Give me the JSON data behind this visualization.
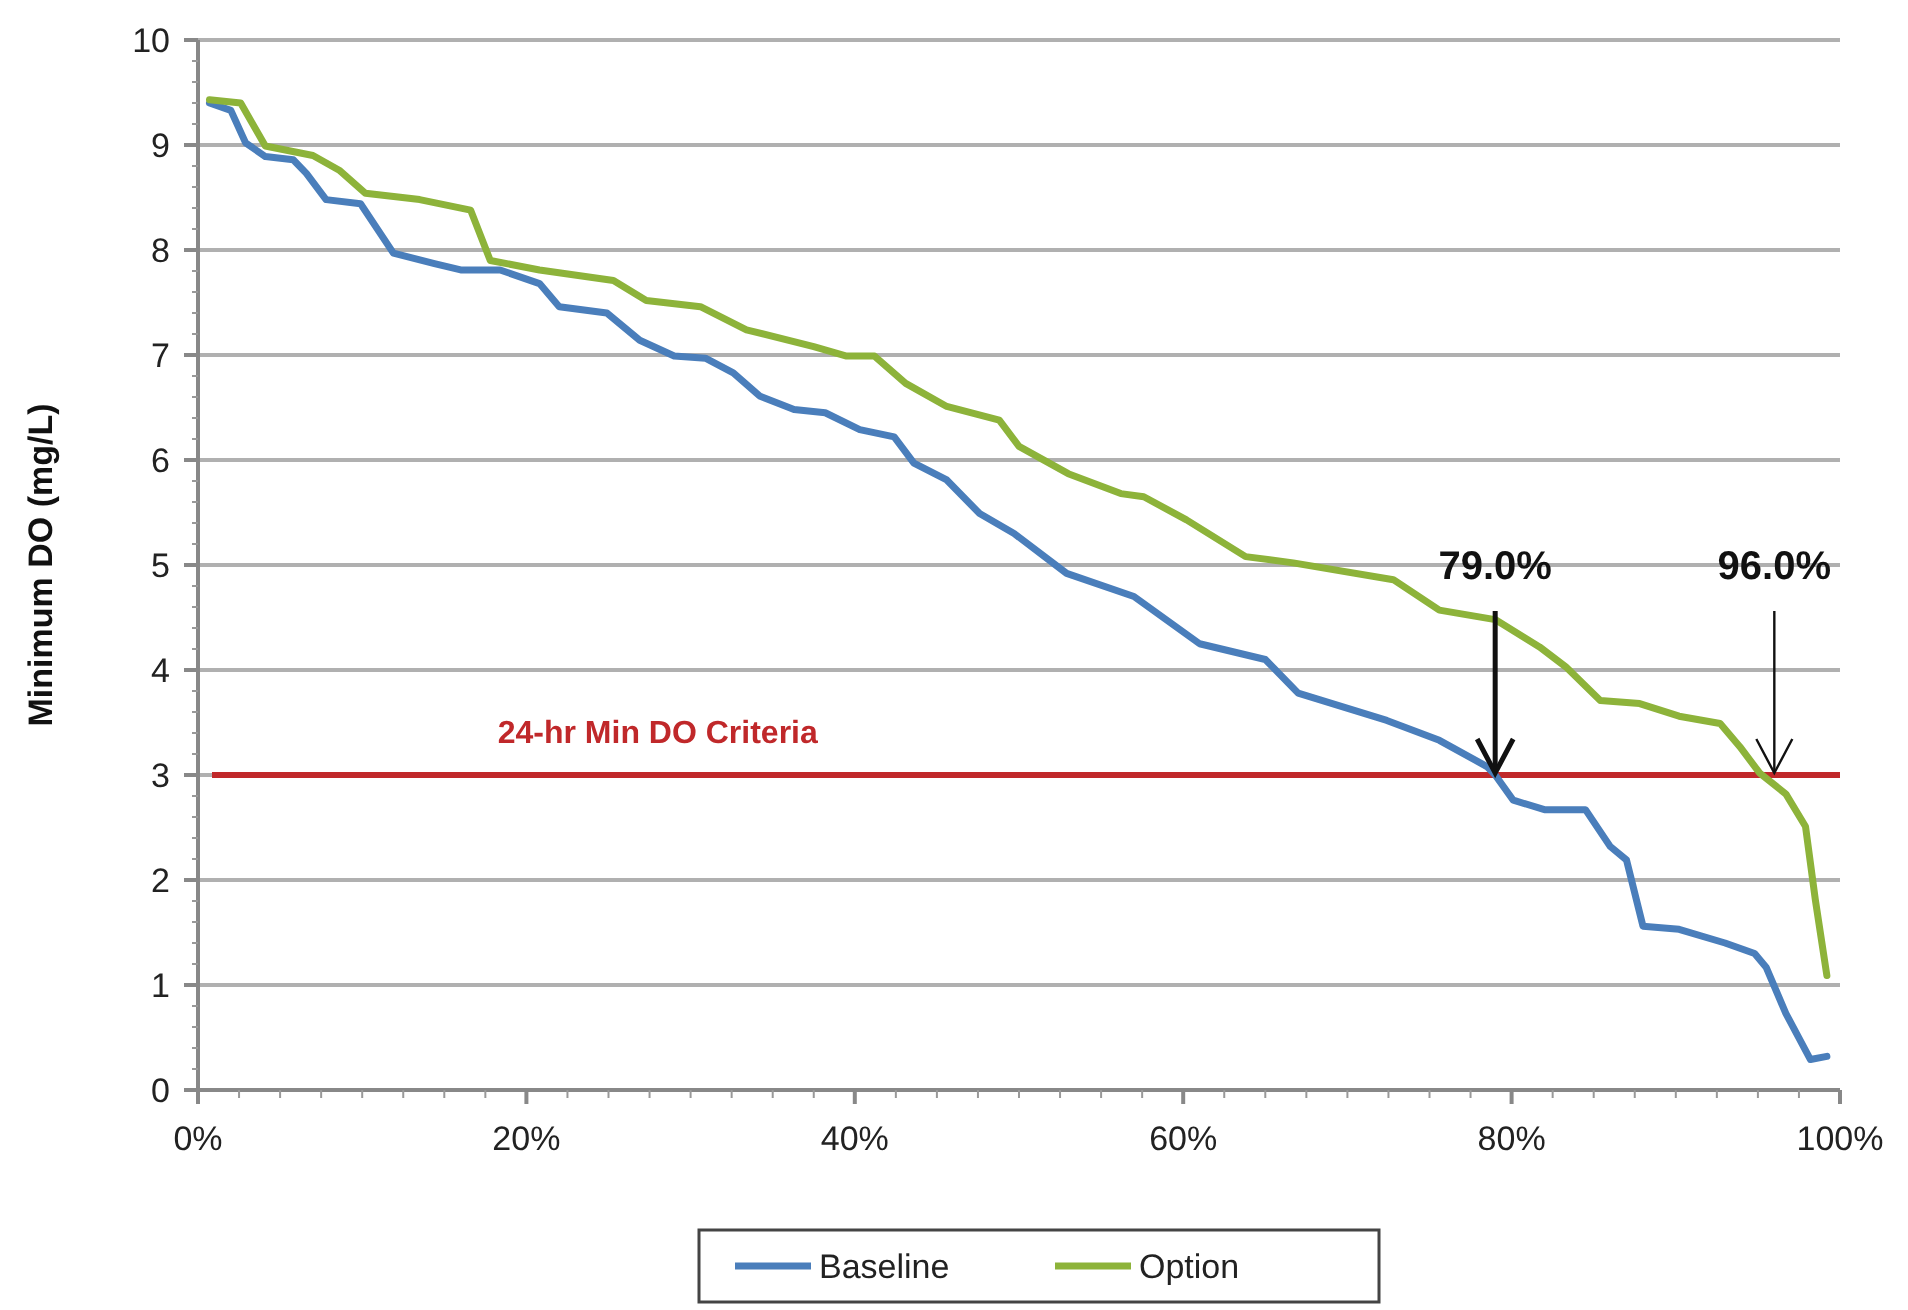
{
  "chart_data": {
    "type": "line",
    "ylabel": "Minimum DO (mg/L)",
    "xlim": [
      0,
      100
    ],
    "ylim": [
      0,
      10
    ],
    "xticks": [
      {
        "value": 0,
        "label": "0%"
      },
      {
        "value": 20,
        "label": "20%"
      },
      {
        "value": 40,
        "label": "40%"
      },
      {
        "value": 60,
        "label": "60%"
      },
      {
        "value": 80,
        "label": "80%"
      },
      {
        "value": 100,
        "label": "100%"
      }
    ],
    "yticks": [
      0,
      1,
      2,
      3,
      4,
      5,
      6,
      7,
      8,
      9,
      10
    ],
    "grid": "y",
    "legend": "bottom",
    "marker": "none",
    "line_style": "solid",
    "ref_lines": [
      {
        "axis": "y",
        "value": 3,
        "label": "24-hr Min DO Criteria",
        "color": "#c0282a"
      }
    ],
    "annotations": [
      {
        "text": "79.0%",
        "x": 79,
        "y": 3
      },
      {
        "text": "96.0%",
        "x": 96,
        "y": 3
      }
    ],
    "series": [
      {
        "name": "Baseline",
        "color": "#4a7ebb",
        "x": [
          0.7,
          2,
          2.9,
          4.1,
          5.8,
          6.6,
          7.8,
          9.9,
          11.9,
          14.4,
          16,
          18.4,
          20.8,
          22,
          24.9,
          26.9,
          29,
          30.9,
          32.6,
          34.2,
          36.3,
          38.2,
          40.3,
          42.4,
          43.6,
          45.6,
          47.6,
          49.7,
          52.9,
          57,
          61,
          65,
          67,
          72.4,
          75.6,
          78.5,
          79,
          80.1,
          82,
          84.5,
          86,
          87,
          88,
          90.2,
          93,
          94.8,
          95.5,
          96.7,
          98.2,
          99.2
        ],
        "values": [
          9.4,
          9.33,
          9.02,
          8.89,
          8.86,
          8.73,
          8.48,
          8.44,
          7.97,
          7.87,
          7.81,
          7.81,
          7.68,
          7.46,
          7.4,
          7.14,
          6.99,
          6.97,
          6.83,
          6.61,
          6.48,
          6.45,
          6.29,
          6.22,
          5.97,
          5.81,
          5.49,
          5.3,
          4.92,
          4.7,
          4.25,
          4.1,
          3.78,
          3.52,
          3.33,
          3.08,
          3.0,
          2.76,
          2.67,
          2.67,
          2.32,
          2.19,
          1.56,
          1.53,
          1.4,
          1.3,
          1.17,
          0.73,
          0.29,
          0.32
        ]
      },
      {
        "name": "Option",
        "color": "#8db33a",
        "x": [
          0.7,
          2.6,
          4.1,
          7,
          8.6,
          10.2,
          13.5,
          16.6,
          17.8,
          20.8,
          25.3,
          27.3,
          30.6,
          33.4,
          37.5,
          39.5,
          41.2,
          43.1,
          45.6,
          48.8,
          50,
          53,
          56.2,
          57.6,
          60.2,
          63.8,
          66.7,
          72.8,
          75.6,
          79,
          81.7,
          83.3,
          85.4,
          87.8,
          90.2,
          92.7,
          93.9,
          95.1,
          96.7,
          97.9,
          98.5,
          99.2
        ],
        "values": [
          9.43,
          9.4,
          8.99,
          8.9,
          8.76,
          8.54,
          8.48,
          8.38,
          7.9,
          7.81,
          7.71,
          7.52,
          7.46,
          7.24,
          7.08,
          6.99,
          6.99,
          6.73,
          6.51,
          6.38,
          6.13,
          5.87,
          5.68,
          5.65,
          5.43,
          5.08,
          5.02,
          4.86,
          4.57,
          4.48,
          4.22,
          4.03,
          3.71,
          3.68,
          3.56,
          3.49,
          3.27,
          3.02,
          2.82,
          2.51,
          1.81,
          1.09
        ]
      }
    ]
  }
}
